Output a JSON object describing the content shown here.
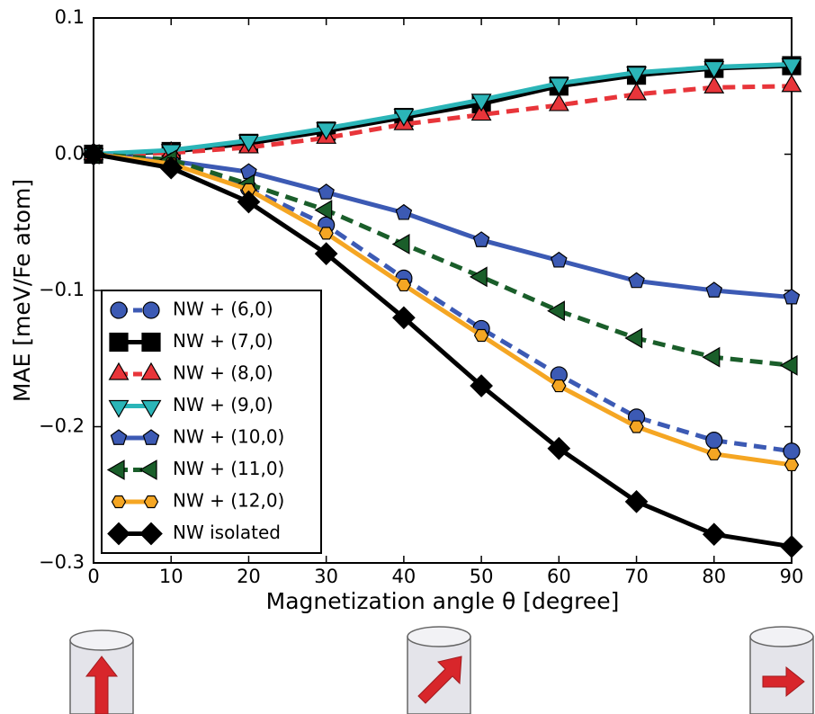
{
  "chart_data": {
    "type": "line",
    "x_label": "Magnetization angle θ [degree]",
    "y_label": "MAE [meV/Fe atom]",
    "x": [
      0,
      10,
      20,
      30,
      40,
      50,
      60,
      70,
      80,
      90
    ],
    "xlim": [
      0,
      90
    ],
    "xticks": [
      0,
      10,
      20,
      30,
      40,
      50,
      60,
      70,
      80,
      90
    ],
    "ylim": [
      -0.3,
      0.1
    ],
    "yticks": [
      {
        "value": -0.3,
        "label": "−0.3"
      },
      {
        "value": -0.2,
        "label": "−0.2"
      },
      {
        "value": -0.1,
        "label": "−0.1"
      },
      {
        "value": 0,
        "label": "0.0"
      },
      0.1
    ],
    "legend": "lower left",
    "series": [
      {
        "name": "NW + (6,0)",
        "color": "#3c5ab4",
        "marker": "circle",
        "linestyle": "dashed",
        "values": [
          0,
          -0.005,
          -0.025,
          -0.052,
          -0.091,
          -0.128,
          -0.162,
          -0.193,
          -0.21,
          -0.218
        ]
      },
      {
        "name": "NW + (7,0)",
        "color": "#000000",
        "marker": "square",
        "linestyle": "solid",
        "values": [
          0,
          0.002,
          0.008,
          0.017,
          0.027,
          0.037,
          0.05,
          0.058,
          0.063,
          0.065
        ]
      },
      {
        "name": "NW + (8,0)",
        "color": "#e8353a",
        "marker": "triangle-up",
        "linestyle": "dashed",
        "values": [
          0,
          0.001,
          0.005,
          0.012,
          0.022,
          0.029,
          0.036,
          0.044,
          0.049,
          0.05
        ]
      },
      {
        "name": "NW + (9,0)",
        "color": "#2bb5b8",
        "marker": "triangle-down",
        "linestyle": "solid",
        "values": [
          0,
          0.003,
          0.01,
          0.019,
          0.029,
          0.04,
          0.052,
          0.06,
          0.064,
          0.066
        ]
      },
      {
        "name": "NW + (10,0)",
        "color": "#3c5ab4",
        "marker": "pentagon",
        "linestyle": "solid",
        "values": [
          0,
          -0.005,
          -0.013,
          -0.028,
          -0.043,
          -0.063,
          -0.078,
          -0.093,
          -0.1,
          -0.105
        ]
      },
      {
        "name": "NW + (11,0)",
        "color": "#1a5e2a",
        "marker": "triangle-left",
        "linestyle": "dashed",
        "values": [
          0,
          -0.004,
          -0.022,
          -0.041,
          -0.066,
          -0.09,
          -0.115,
          -0.135,
          -0.149,
          -0.155
        ]
      },
      {
        "name": "NW + (12,0)",
        "color": "#f5a623",
        "marker": "hexagon",
        "linestyle": "solid",
        "values": [
          0,
          -0.007,
          -0.026,
          -0.058,
          -0.096,
          -0.133,
          -0.17,
          -0.2,
          -0.22,
          -0.228
        ]
      },
      {
        "name": "NW isolated",
        "color": "#000000",
        "marker": "diamond",
        "linestyle": "solid",
        "values": [
          0,
          -0.01,
          -0.035,
          -0.073,
          -0.12,
          -0.17,
          -0.216,
          -0.255,
          -0.279,
          -0.288
        ]
      }
    ]
  }
}
